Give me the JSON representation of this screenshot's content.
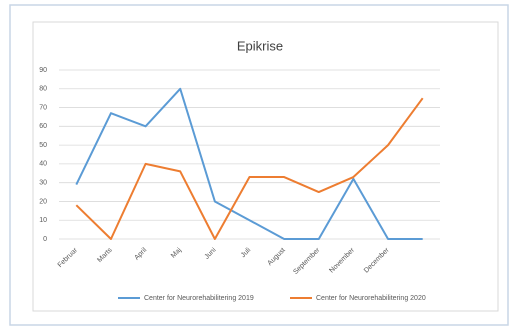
{
  "chart_data": {
    "type": "line",
    "title": "Epikrise",
    "categories": [
      "Februar",
      "Marts",
      "April",
      "Maj",
      "Juni",
      "Juli",
      "August",
      "September",
      "November",
      "December",
      null
    ],
    "series": [
      {
        "name": "Center for Neurorehabilitering 2019",
        "color": "#5b9bd5",
        "values": [
          29,
          67,
          60,
          80,
          20,
          10,
          0,
          0,
          32,
          0,
          0
        ]
      },
      {
        "name": "Center for Neurorehabilitering 2020",
        "color": "#ed7d31",
        "values": [
          18,
          0,
          40,
          36,
          0,
          33,
          33,
          25,
          33,
          50,
          75
        ]
      }
    ],
    "ylim": [
      0,
      90
    ],
    "yticks": [
      0,
      10,
      20,
      30,
      40,
      50,
      60,
      70,
      80,
      90
    ],
    "grid": true,
    "legend": "bottom"
  }
}
